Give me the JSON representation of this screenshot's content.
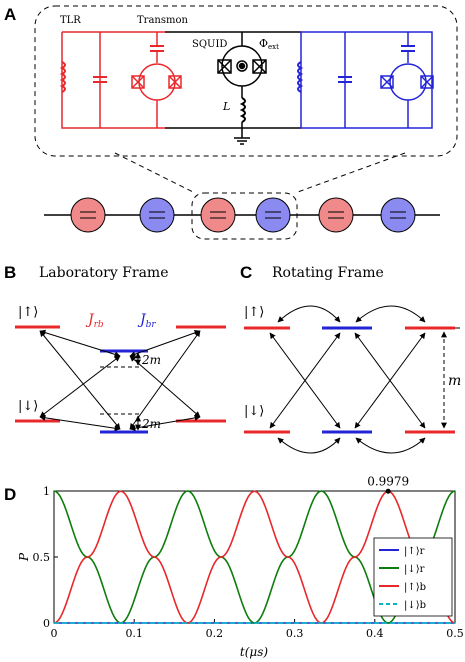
{
  "panels": {
    "A": {
      "label": "A",
      "tlr": "TLR",
      "transmon": "Transmon",
      "squid": "SQUID",
      "phi_ext": "Φ",
      "phi_ext_sub": "ext",
      "inductor": "L"
    },
    "B": {
      "label": "B",
      "title": "Laboratory Frame",
      "up_state": "|↑⟩",
      "down_state": "|↓⟩",
      "j_rb": "J",
      "j_rb_sub": "rb",
      "j_br": "J",
      "j_br_sub": "br",
      "splitting_top": "2m",
      "splitting_bottom": "2m"
    },
    "C": {
      "label": "C",
      "title": "Rotating Frame",
      "up_state": "|↑⟩",
      "down_state": "|↓⟩",
      "m_label": "m"
    },
    "D": {
      "label": "D",
      "peak_annotation": "0.9979"
    }
  },
  "colors": {
    "red": "#e8282b",
    "blue": "#2323d8",
    "green": "#0e7d0e",
    "cyan": "#00b8c0",
    "site_red": "#f08a8a",
    "site_blue": "#8a8af0"
  },
  "chart_data": {
    "type": "line",
    "xlabel": "t(μs)",
    "ylabel": "P",
    "xlim": [
      0,
      0.5
    ],
    "ylim": [
      0,
      1
    ],
    "xticks": [
      "0",
      "0.1",
      "0.2",
      "0.3",
      "0.4",
      "0.5"
    ],
    "yticks": [
      "0",
      "0.5",
      "1"
    ],
    "legend_position": "bottom-right",
    "series": [
      {
        "name": "|↑⟩r",
        "color": "#2323d8",
        "style": "solid",
        "x": [
          0,
          0.1,
          0.2,
          0.3,
          0.4,
          0.5
        ],
        "y": [
          0,
          0,
          0,
          0,
          0,
          0
        ]
      },
      {
        "name": "|↓⟩r",
        "color": "#0e7d0e",
        "style": "solid",
        "x": [
          0,
          0.0417,
          0.0833,
          0.125,
          0.1667,
          0.2083,
          0.25,
          0.2917,
          0.3333,
          0.375,
          0.4167,
          0.4583,
          0.5
        ],
        "y": [
          1,
          0.5,
          0,
          0.5,
          1,
          0.5,
          0,
          0.5,
          1,
          0.5,
          0,
          0.5,
          1
        ]
      },
      {
        "name": "|↑⟩b",
        "color": "#e8282b",
        "style": "solid",
        "x": [
          0,
          0.0417,
          0.0833,
          0.125,
          0.1667,
          0.2083,
          0.25,
          0.2917,
          0.3333,
          0.375,
          0.4167,
          0.4583,
          0.5
        ],
        "y": [
          0,
          0.5,
          0.9979,
          0.5,
          0,
          0.5,
          0.9979,
          0.5,
          0,
          0.5,
          0.9979,
          0.5,
          0
        ]
      },
      {
        "name": "|↓⟩b",
        "color": "#00b8c0",
        "style": "dashed",
        "x": [
          0,
          0.1,
          0.2,
          0.3,
          0.4,
          0.5
        ],
        "y": [
          0,
          0,
          0,
          0,
          0,
          0
        ]
      }
    ],
    "annotations": [
      {
        "text": "0.9979",
        "x": 0.4167,
        "y": 0.9979
      }
    ]
  }
}
